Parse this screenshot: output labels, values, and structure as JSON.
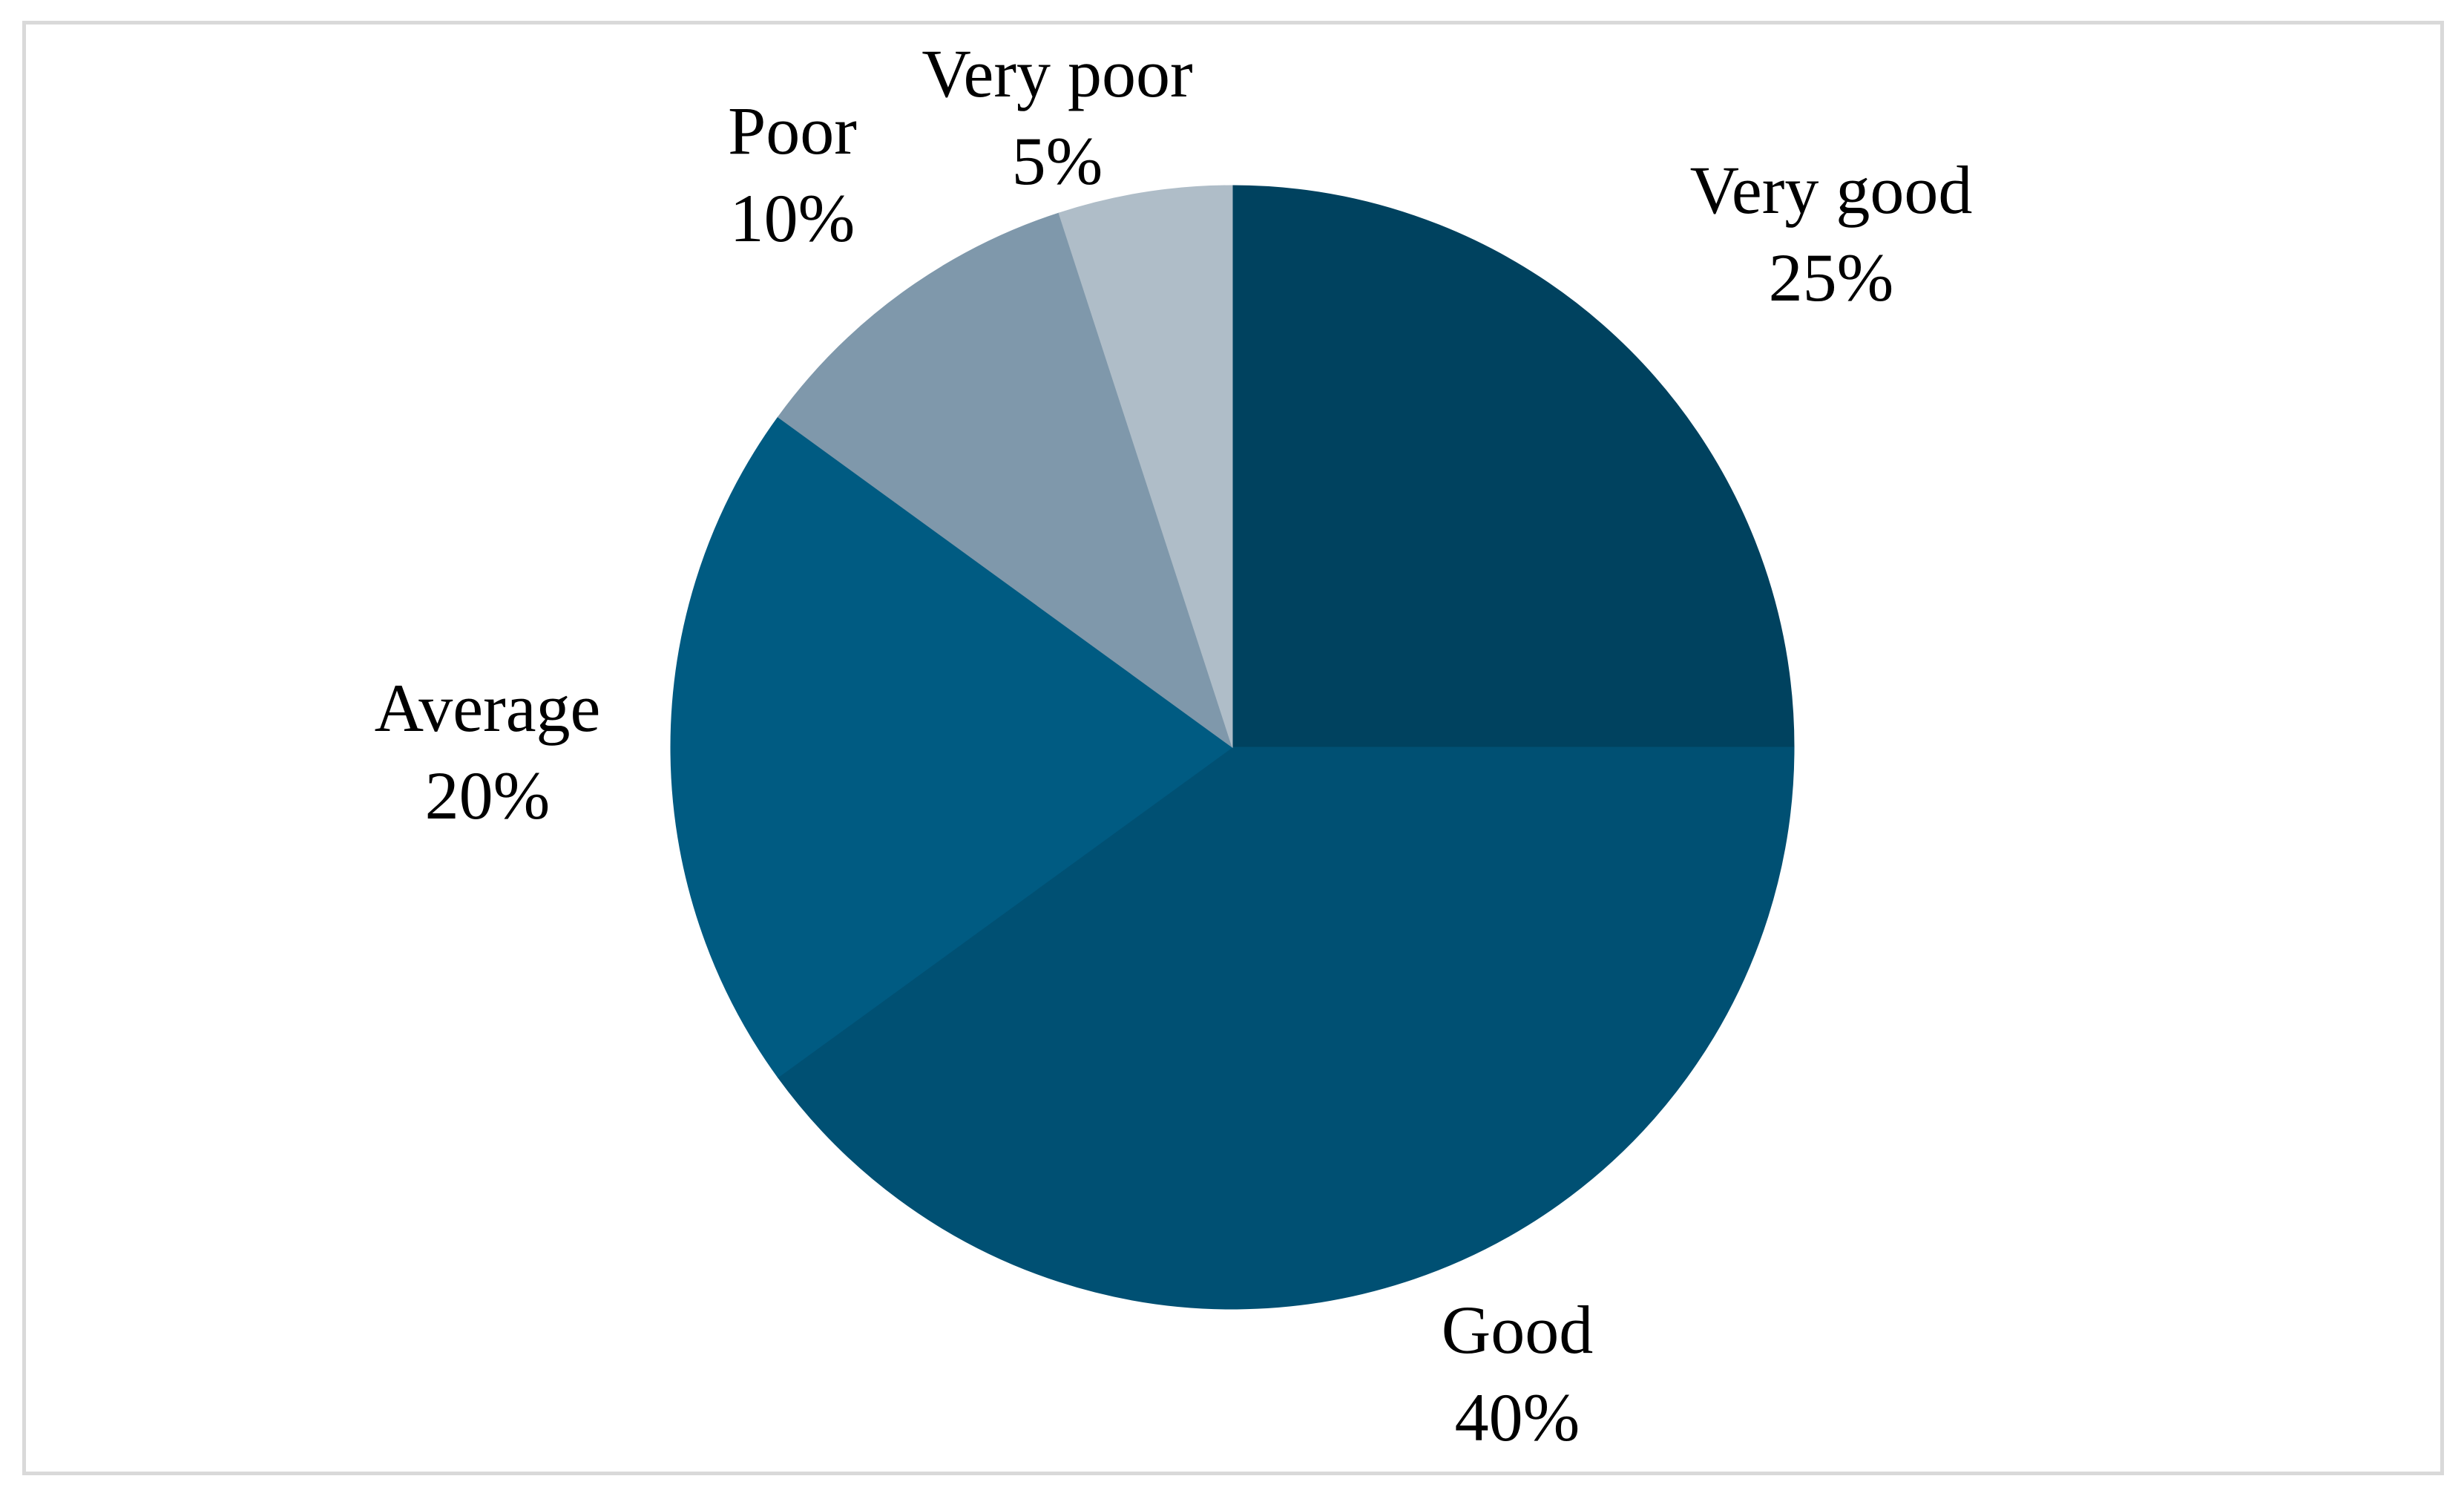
{
  "chart_data": {
    "type": "pie",
    "title": "",
    "slices": [
      {
        "label": "Very good",
        "value": 25,
        "value_label": "25%",
        "color": "#00425f"
      },
      {
        "label": "Good",
        "value": 40,
        "value_label": "40%",
        "color": "#005073"
      },
      {
        "label": "Average",
        "value": 20,
        "value_label": "20%",
        "color": "#005b82"
      },
      {
        "label": "Poor",
        "value": 10,
        "value_label": "10%",
        "color": "#7f98ab"
      },
      {
        "label": "Very poor",
        "value": 5,
        "value_label": "5%",
        "color": "#afbdc8"
      }
    ],
    "start_angle": "12 o'clock",
    "direction": "clockwise",
    "legend": "none",
    "data_labels": "outside"
  }
}
